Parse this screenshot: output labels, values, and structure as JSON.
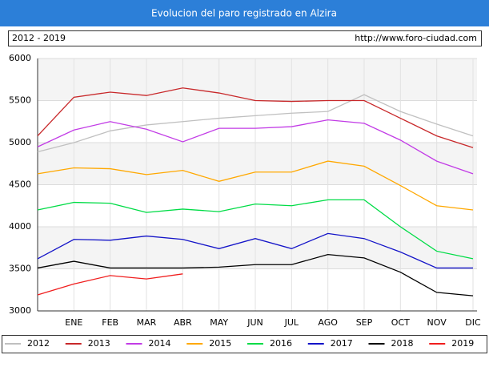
{
  "chart_data": {
    "type": "line",
    "title": "Evolucion del paro registrado en Alzira",
    "subtitle": "2012 - 2019",
    "annotation": "http://www.foro-ciudad.com",
    "categories": [
      null,
      "ENE",
      "FEB",
      "MAR",
      "ABR",
      "MAY",
      "JUN",
      "JUL",
      "AGO",
      "SEP",
      "OCT",
      "NOV",
      "DIC"
    ],
    "ylim": [
      3000,
      6000
    ],
    "yticks": [
      3000,
      3500,
      4000,
      4500,
      5000,
      5500,
      6000
    ],
    "grid": true,
    "legend": "bottom",
    "series": [
      {
        "name": "2012",
        "color": "#c0c0c0",
        "values": [
          4890,
          5000,
          5140,
          5210,
          5250,
          5290,
          5320,
          5350,
          5370,
          5570,
          5370,
          5220,
          5080
        ]
      },
      {
        "name": "2013",
        "color": "#c8282a",
        "values": [
          5080,
          5540,
          5600,
          5560,
          5650,
          5590,
          5500,
          5490,
          5500,
          5500,
          5290,
          5080,
          4940
        ]
      },
      {
        "name": "2014",
        "color": "#c23ce6",
        "values": [
          4950,
          5150,
          5250,
          5160,
          5010,
          5170,
          5170,
          5190,
          5270,
          5230,
          5030,
          4780,
          4630
        ]
      },
      {
        "name": "2015",
        "color": "#ffa800",
        "values": [
          4630,
          4700,
          4690,
          4620,
          4670,
          4540,
          4650,
          4650,
          4780,
          4720,
          4490,
          4250,
          4200
        ]
      },
      {
        "name": "2016",
        "color": "#00dc46",
        "values": [
          4200,
          4290,
          4280,
          4170,
          4210,
          4180,
          4270,
          4250,
          4320,
          4320,
          4000,
          3710,
          3620
        ]
      },
      {
        "name": "2017",
        "color": "#1414c8",
        "values": [
          3620,
          3850,
          3840,
          3890,
          3850,
          3740,
          3860,
          3740,
          3920,
          3860,
          3700,
          3510,
          3510
        ]
      },
      {
        "name": "2018",
        "color": "#000000",
        "values": [
          3510,
          3590,
          3510,
          3510,
          3510,
          3520,
          3550,
          3550,
          3670,
          3630,
          3460,
          3220,
          3180
        ]
      },
      {
        "name": "2019",
        "color": "#f01e1e",
        "values": [
          3190,
          3320,
          3420,
          3380,
          3440,
          null,
          null,
          null,
          null,
          null,
          null,
          null,
          null
        ]
      }
    ]
  }
}
